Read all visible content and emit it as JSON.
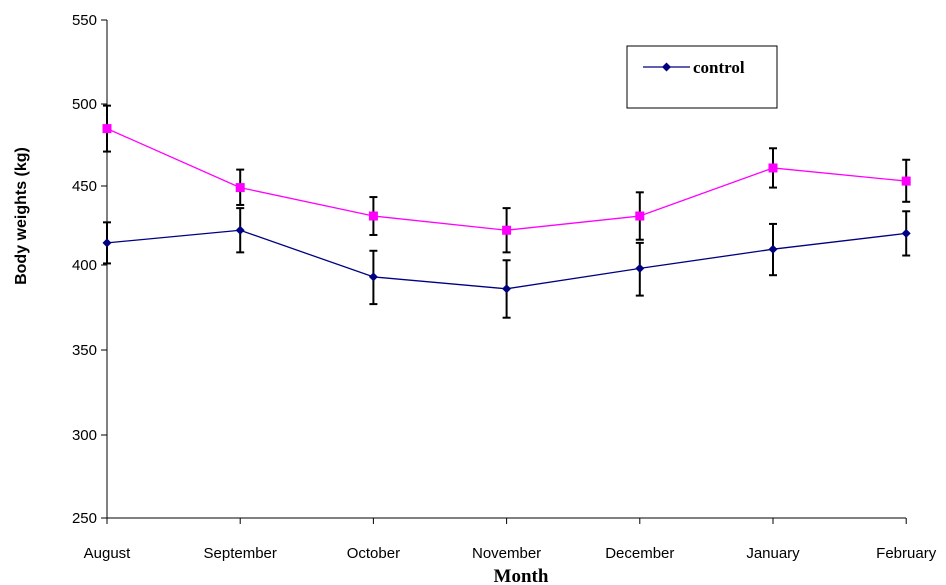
{
  "chart_data": {
    "type": "line",
    "title": "",
    "xlabel": "Month",
    "ylabel": "Body weights (kg)",
    "categories": [
      "August",
      "September",
      "October",
      "November",
      "December",
      "January",
      "February"
    ],
    "yticks": [
      250,
      300,
      350,
      400,
      450,
      500,
      550
    ],
    "ylim": [
      250,
      550
    ],
    "grid": false,
    "legend": {
      "placement": "top-right",
      "entries": [
        "control"
      ]
    },
    "series": [
      {
        "name": "control",
        "color": "#000080",
        "marker": "diamond",
        "values": [
          414,
          422,
          393,
          386,
          398,
          410,
          420
        ],
        "errors": [
          13,
          14,
          16,
          17,
          16,
          16,
          14
        ]
      },
      {
        "color": "#ff00ff",
        "marker": "square",
        "values": [
          485,
          449,
          431,
          422,
          431,
          461,
          453
        ],
        "errors": [
          14,
          11,
          12,
          14,
          15,
          12,
          13
        ]
      }
    ],
    "yaxis_notes": "y-axis spacing is nonuniform; tick labels as printed"
  }
}
